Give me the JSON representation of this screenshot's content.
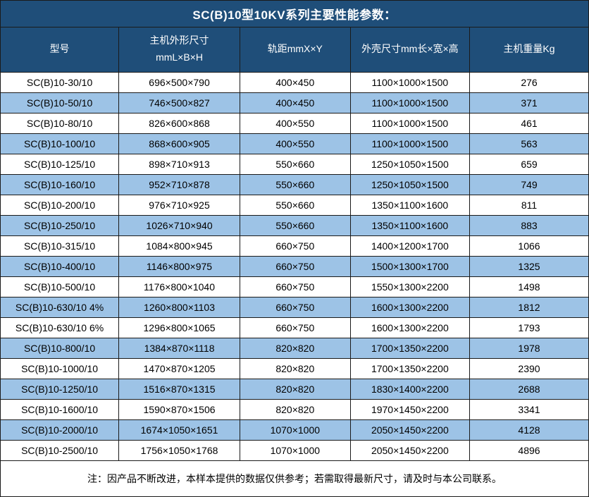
{
  "title": "SC(B)10型10KV系列主要性能参数：",
  "note": "注：因产品不断改进，本样本提供的数据仅供参考；若需取得最新尺寸，请及时与本公司联系。",
  "colors": {
    "header_bg": "#1F4E79",
    "header_text": "#FFFFFF",
    "alt_row_bg": "#9DC3E6",
    "row_bg": "#FFFFFF",
    "body_text": "#000000",
    "border": "#1A1A1A"
  },
  "table": {
    "columns": [
      {
        "line1": "型号",
        "line2": ""
      },
      {
        "line1": "主机外形尺寸",
        "line2": "mmL×B×H"
      },
      {
        "line1": "轨距mmX×Y",
        "line2": ""
      },
      {
        "line1": "外壳尺寸mm长×宽×高",
        "line2": ""
      },
      {
        "line1": "主机重量Kg",
        "line2": ""
      }
    ],
    "rows": [
      [
        "SC(B)10-30/10",
        "696×500×790",
        "400×450",
        "1100×1000×1500",
        "276"
      ],
      [
        "SC(B)10-50/10",
        "746×500×827",
        "400×450",
        "1100×1000×1500",
        "371"
      ],
      [
        "SC(B)10-80/10",
        "826×600×868",
        "400×550",
        "1100×1000×1500",
        "461"
      ],
      [
        "SC(B)10-100/10",
        "868×600×905",
        "400×550",
        "1100×1000×1500",
        "563"
      ],
      [
        "SC(B)10-125/10",
        "898×710×913",
        "550×660",
        "1250×1050×1500",
        "659"
      ],
      [
        "SC(B)10-160/10",
        "952×710×878",
        "550×660",
        "1250×1050×1500",
        "749"
      ],
      [
        "SC(B)10-200/10",
        "976×710×925",
        "550×660",
        "1350×1100×1600",
        "811"
      ],
      [
        "SC(B)10-250/10",
        "1026×710×940",
        "550×660",
        "1350×1100×1600",
        "883"
      ],
      [
        "SC(B)10-315/10",
        "1084×800×945",
        "660×750",
        "1400×1200×1700",
        "1066"
      ],
      [
        "SC(B)10-400/10",
        "1146×800×975",
        "660×750",
        "1500×1300×1700",
        "1325"
      ],
      [
        "SC(B)10-500/10",
        "1176×800×1040",
        "660×750",
        "1550×1300×2200",
        "1498"
      ],
      [
        "SC(B)10-630/10 4%",
        "1260×800×1103",
        "660×750",
        "1600×1300×2200",
        "1812"
      ],
      [
        "SC(B)10-630/10 6%",
        "1296×800×1065",
        "660×750",
        "1600×1300×2200",
        "1793"
      ],
      [
        "SC(B)10-800/10",
        "1384×870×1118",
        "820×820",
        "1700×1350×2200",
        "1978"
      ],
      [
        "SC(B)10-1000/10",
        "1470×870×1205",
        "820×820",
        "1700×1350×2200",
        "2390"
      ],
      [
        "SC(B)10-1250/10",
        "1516×870×1315",
        "820×820",
        "1830×1400×2200",
        "2688"
      ],
      [
        "SC(B)10-1600/10",
        "1590×870×1506",
        "820×820",
        "1970×1450×2200",
        "3341"
      ],
      [
        "SC(B)10-2000/10",
        "1674×1050×1651",
        "1070×1000",
        "2050×1450×2200",
        "4128"
      ],
      [
        "SC(B)10-2500/10",
        "1756×1050×1768",
        "1070×1000",
        "2050×1450×2200",
        "4896"
      ]
    ]
  }
}
